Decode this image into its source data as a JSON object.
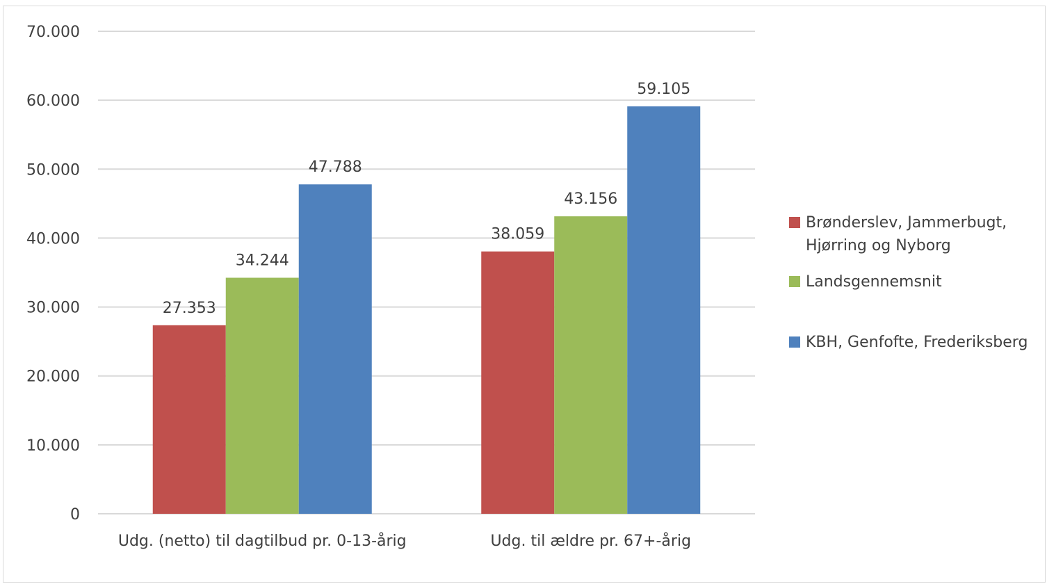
{
  "chart_data": {
    "type": "bar",
    "categories": [
      "Udg. (netto) til dagtilbud pr. 0-13-årig",
      "Udg. til ældre pr. 67+-årig"
    ],
    "series": [
      {
        "name": "Brønderslev, Jammerbugt, Hjørring og Nyborg",
        "name_lines": [
          "Brønderslev, Jammerbugt,",
          "Hjørring og Nyborg"
        ],
        "color": "#c0504d",
        "values": [
          27353,
          38059
        ],
        "labels": [
          "27.353",
          "38.059"
        ]
      },
      {
        "name": "Landsgennemsnit",
        "name_lines": [
          "Landsgennemsnit"
        ],
        "color": "#9bbb59",
        "values": [
          34244,
          43156
        ],
        "labels": [
          "34.244",
          "43.156"
        ]
      },
      {
        "name": "KBH, Genfofte, Frederiksberg",
        "name_lines": [
          "KBH, Genfofte, Frederiksberg"
        ],
        "color": "#4f81bd",
        "values": [
          47788,
          59105
        ],
        "labels": [
          "47.788",
          "59.105"
        ]
      }
    ],
    "ylim": [
      0,
      70000
    ],
    "yticks": [
      0,
      10000,
      20000,
      30000,
      40000,
      50000,
      60000,
      70000
    ],
    "ytick_labels": [
      "0",
      "10.000",
      "20.000",
      "30.000",
      "40.000",
      "50.000",
      "60.000",
      "70.000"
    ],
    "grid": true,
    "legend": "right",
    "title": "",
    "xlabel": "",
    "ylabel": ""
  }
}
